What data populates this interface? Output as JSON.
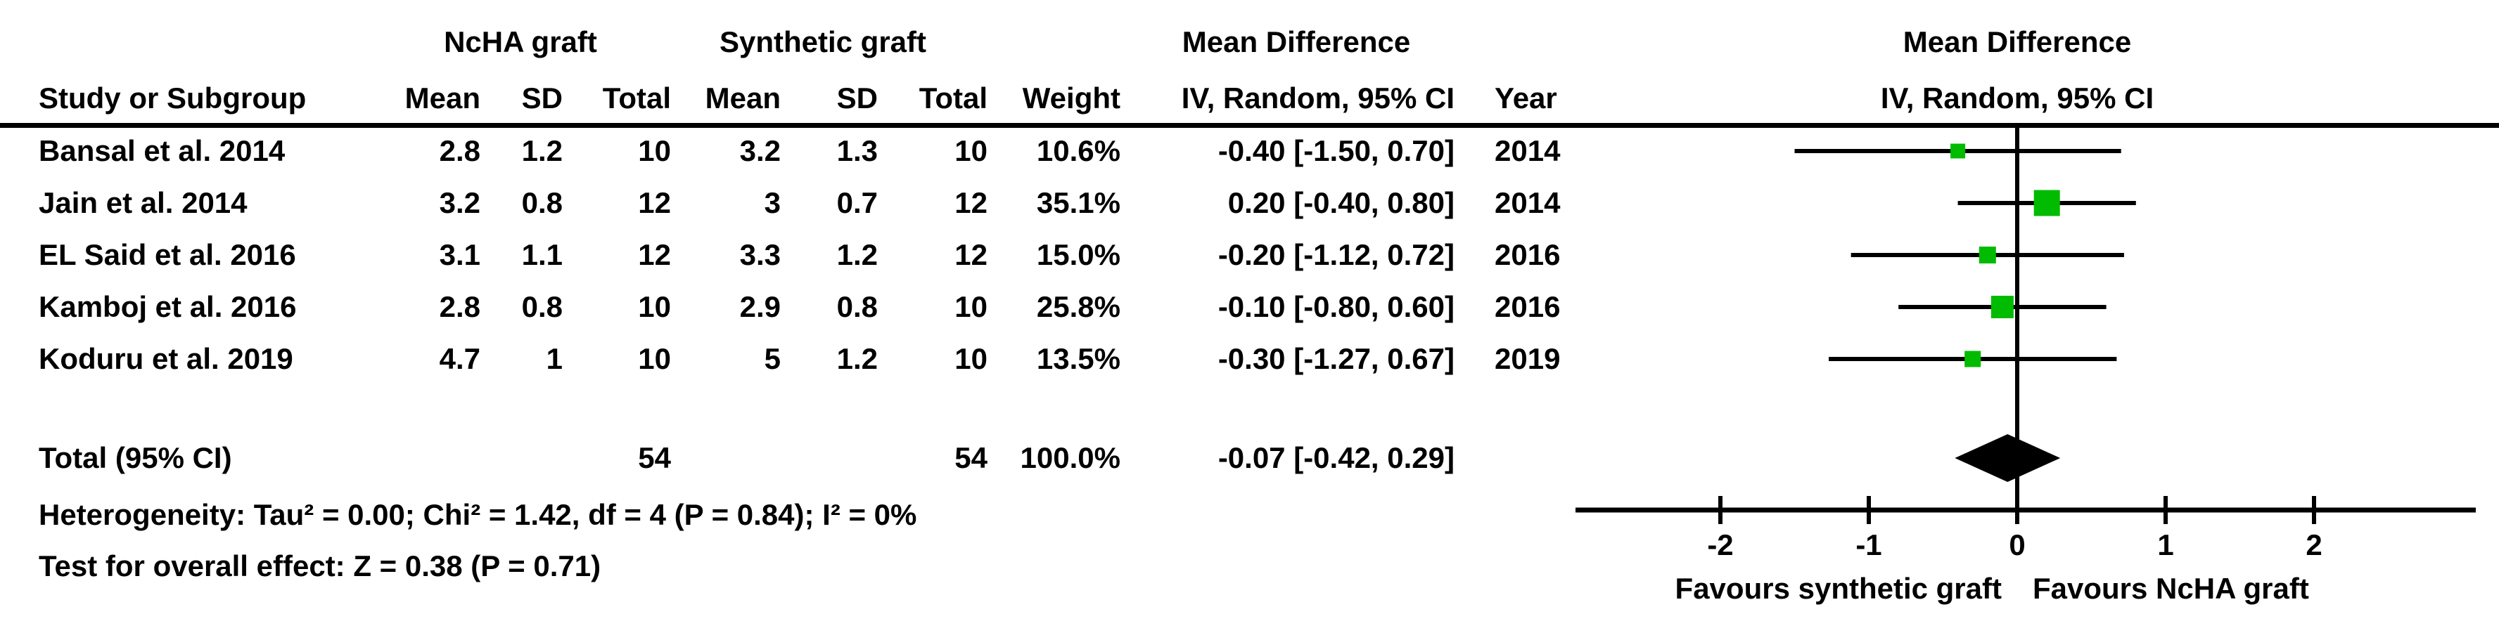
{
  "table": {
    "group_headers": {
      "ncha": "NcHA graft",
      "synthetic": "Synthetic graft",
      "mean_difference": "Mean Difference"
    },
    "columns": {
      "study": "Study or Subgroup",
      "mean": "Mean",
      "sd": "SD",
      "total": "Total",
      "weight": "Weight",
      "iv_ci": "IV, Random, 95% CI",
      "year": "Year"
    },
    "heterogeneity": "Heterogeneity: Tau² = 0.00; Chi² = 1.42, df = 4 (P = 0.84); I² = 0%",
    "overall_effect": "Test for overall effect: Z = 0.38 (P = 0.71)"
  },
  "plot": {
    "header_line1": "Mean Difference",
    "header_line2": "IV, Random, 95% CI",
    "marker_color": "#00BB00",
    "line_color": "#000000"
  },
  "chart_data": {
    "type": "forest",
    "effect_measure": "Mean Difference, IV, Random, 95% CI",
    "x_ticks": [
      -2,
      -1,
      0,
      1,
      2
    ],
    "x_tick_labels": [
      "-2",
      "-1",
      "0",
      "1",
      "2"
    ],
    "xlim": [
      -3,
      3.1
    ],
    "favours_left": "Favours synthetic graft",
    "favours_right": "Favours NcHA graft",
    "studies": [
      {
        "label": "Bansal et al. 2014",
        "ncha": {
          "mean": "2.8",
          "sd": "1.2",
          "total": "10"
        },
        "synthetic": {
          "mean": "3.2",
          "sd": "1.3",
          "total": "10"
        },
        "weight": "10.6%",
        "weight_pct": 10.6,
        "md": -0.4,
        "ci_low": -1.5,
        "ci_high": 0.7,
        "ci_text": "-0.40 [-1.50, 0.70]",
        "year": "2014"
      },
      {
        "label": "Jain et al. 2014",
        "ncha": {
          "mean": "3.2",
          "sd": "0.8",
          "total": "12"
        },
        "synthetic": {
          "mean": "3",
          "sd": "0.7",
          "total": "12"
        },
        "weight": "35.1%",
        "weight_pct": 35.1,
        "md": 0.2,
        "ci_low": -0.4,
        "ci_high": 0.8,
        "ci_text": "0.20 [-0.40, 0.80]",
        "year": "2014"
      },
      {
        "label": "EL Said et al. 2016",
        "ncha": {
          "mean": "3.1",
          "sd": "1.1",
          "total": "12"
        },
        "synthetic": {
          "mean": "3.3",
          "sd": "1.2",
          "total": "12"
        },
        "weight": "15.0%",
        "weight_pct": 15.0,
        "md": -0.2,
        "ci_low": -1.12,
        "ci_high": 0.72,
        "ci_text": "-0.20 [-1.12, 0.72]",
        "year": "2016"
      },
      {
        "label": "Kamboj et al. 2016",
        "ncha": {
          "mean": "2.8",
          "sd": "0.8",
          "total": "10"
        },
        "synthetic": {
          "mean": "2.9",
          "sd": "0.8",
          "total": "10"
        },
        "weight": "25.8%",
        "weight_pct": 25.8,
        "md": -0.1,
        "ci_low": -0.8,
        "ci_high": 0.6,
        "ci_text": "-0.10 [-0.80, 0.60]",
        "year": "2016"
      },
      {
        "label": "Koduru et al. 2019",
        "ncha": {
          "mean": "4.7",
          "sd": "1",
          "total": "10"
        },
        "synthetic": {
          "mean": "5",
          "sd": "1.2",
          "total": "10"
        },
        "weight": "13.5%",
        "weight_pct": 13.5,
        "md": -0.3,
        "ci_low": -1.27,
        "ci_high": 0.67,
        "ci_text": "-0.30 [-1.27, 0.67]",
        "year": "2019"
      }
    ],
    "total": {
      "label": "Total (95% CI)",
      "ncha_total": "54",
      "synthetic_total": "54",
      "weight": "100.0%",
      "md": -0.07,
      "ci_low": -0.42,
      "ci_high": 0.29,
      "ci_text": "-0.07 [-0.42, 0.29]"
    }
  }
}
